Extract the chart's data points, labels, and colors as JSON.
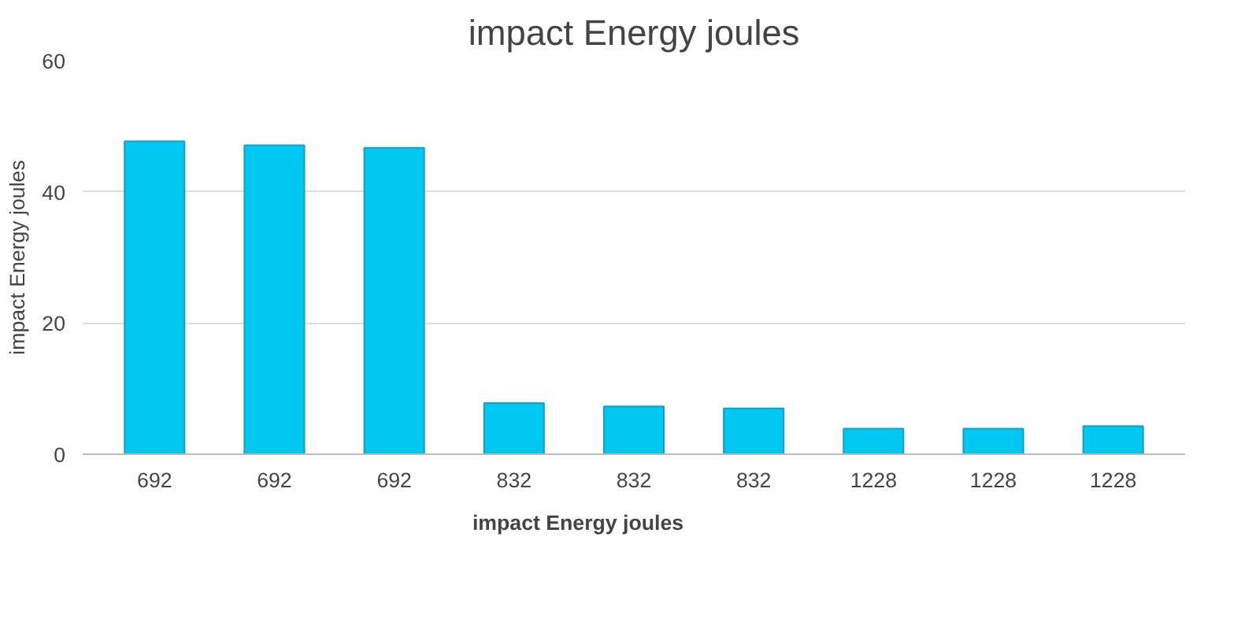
{
  "chart_data": {
    "type": "bar",
    "title": "impact Energy joules",
    "ylabel": "impact Energy joules",
    "categories": [
      "692",
      "692",
      "692",
      "832",
      "832",
      "832",
      "1228",
      "1228",
      "1228"
    ],
    "series": [
      {
        "name": "impact Energy joules",
        "color": "#00c8f0",
        "values": [
          47.7,
          47.1,
          46.7,
          7.8,
          7.3,
          7.0,
          3.9,
          3.9,
          4.3
        ]
      }
    ],
    "ylim": [
      0,
      60
    ],
    "yticks": [
      0,
      20,
      40,
      60
    ],
    "grid": "y",
    "legend": "bottom"
  }
}
